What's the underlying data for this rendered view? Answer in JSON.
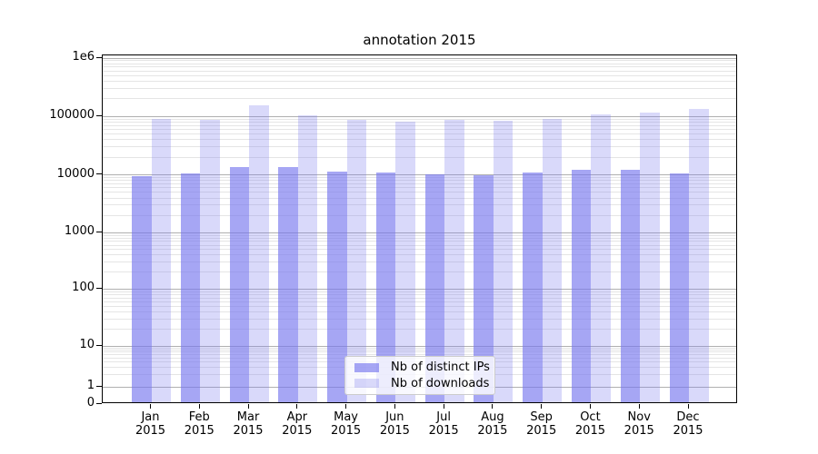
{
  "figure": {
    "title": "annotation 2015"
  },
  "chart_data": {
    "type": "bar",
    "title": "annotation 2015",
    "yscale": "symlog",
    "grid": true,
    "ylim": [
      0,
      1100000
    ],
    "legend_position": "lower center",
    "months": [
      "Jan",
      "Feb",
      "Mar",
      "Apr",
      "May",
      "Jun",
      "Jul",
      "Aug",
      "Sep",
      "Oct",
      "Nov",
      "Dec"
    ],
    "year": "2015",
    "y_ticks": [
      {
        "label": "0",
        "value": 0
      },
      {
        "label": "1",
        "value": 1
      },
      {
        "label": "10",
        "value": 10
      },
      {
        "label": "100",
        "value": 100
      },
      {
        "label": "1000",
        "value": 1000
      },
      {
        "label": "10000",
        "value": 10000
      },
      {
        "label": "100000",
        "value": 100000
      },
      {
        "label": "1e6",
        "value": 1000000
      }
    ],
    "series": [
      {
        "name": "Nb of distinct IPs",
        "color": "rgba(119,119,238,0.65)",
        "values": [
          8800,
          9800,
          12700,
          12700,
          10500,
          10100,
          9500,
          9100,
          10400,
          11300,
          11600,
          10000
        ]
      },
      {
        "name": "Nb of downloads",
        "color": "rgba(119,119,238,0.28)",
        "values": [
          85000,
          81000,
          144000,
          98000,
          83000,
          76000,
          83000,
          79000,
          86000,
          102000,
          110000,
          127000
        ]
      }
    ]
  },
  "colors": {
    "major_grid": "#b0b0b0",
    "minor_grid": "#e5e5e5",
    "axis": "#000000",
    "legend_border": "#cccccc"
  }
}
